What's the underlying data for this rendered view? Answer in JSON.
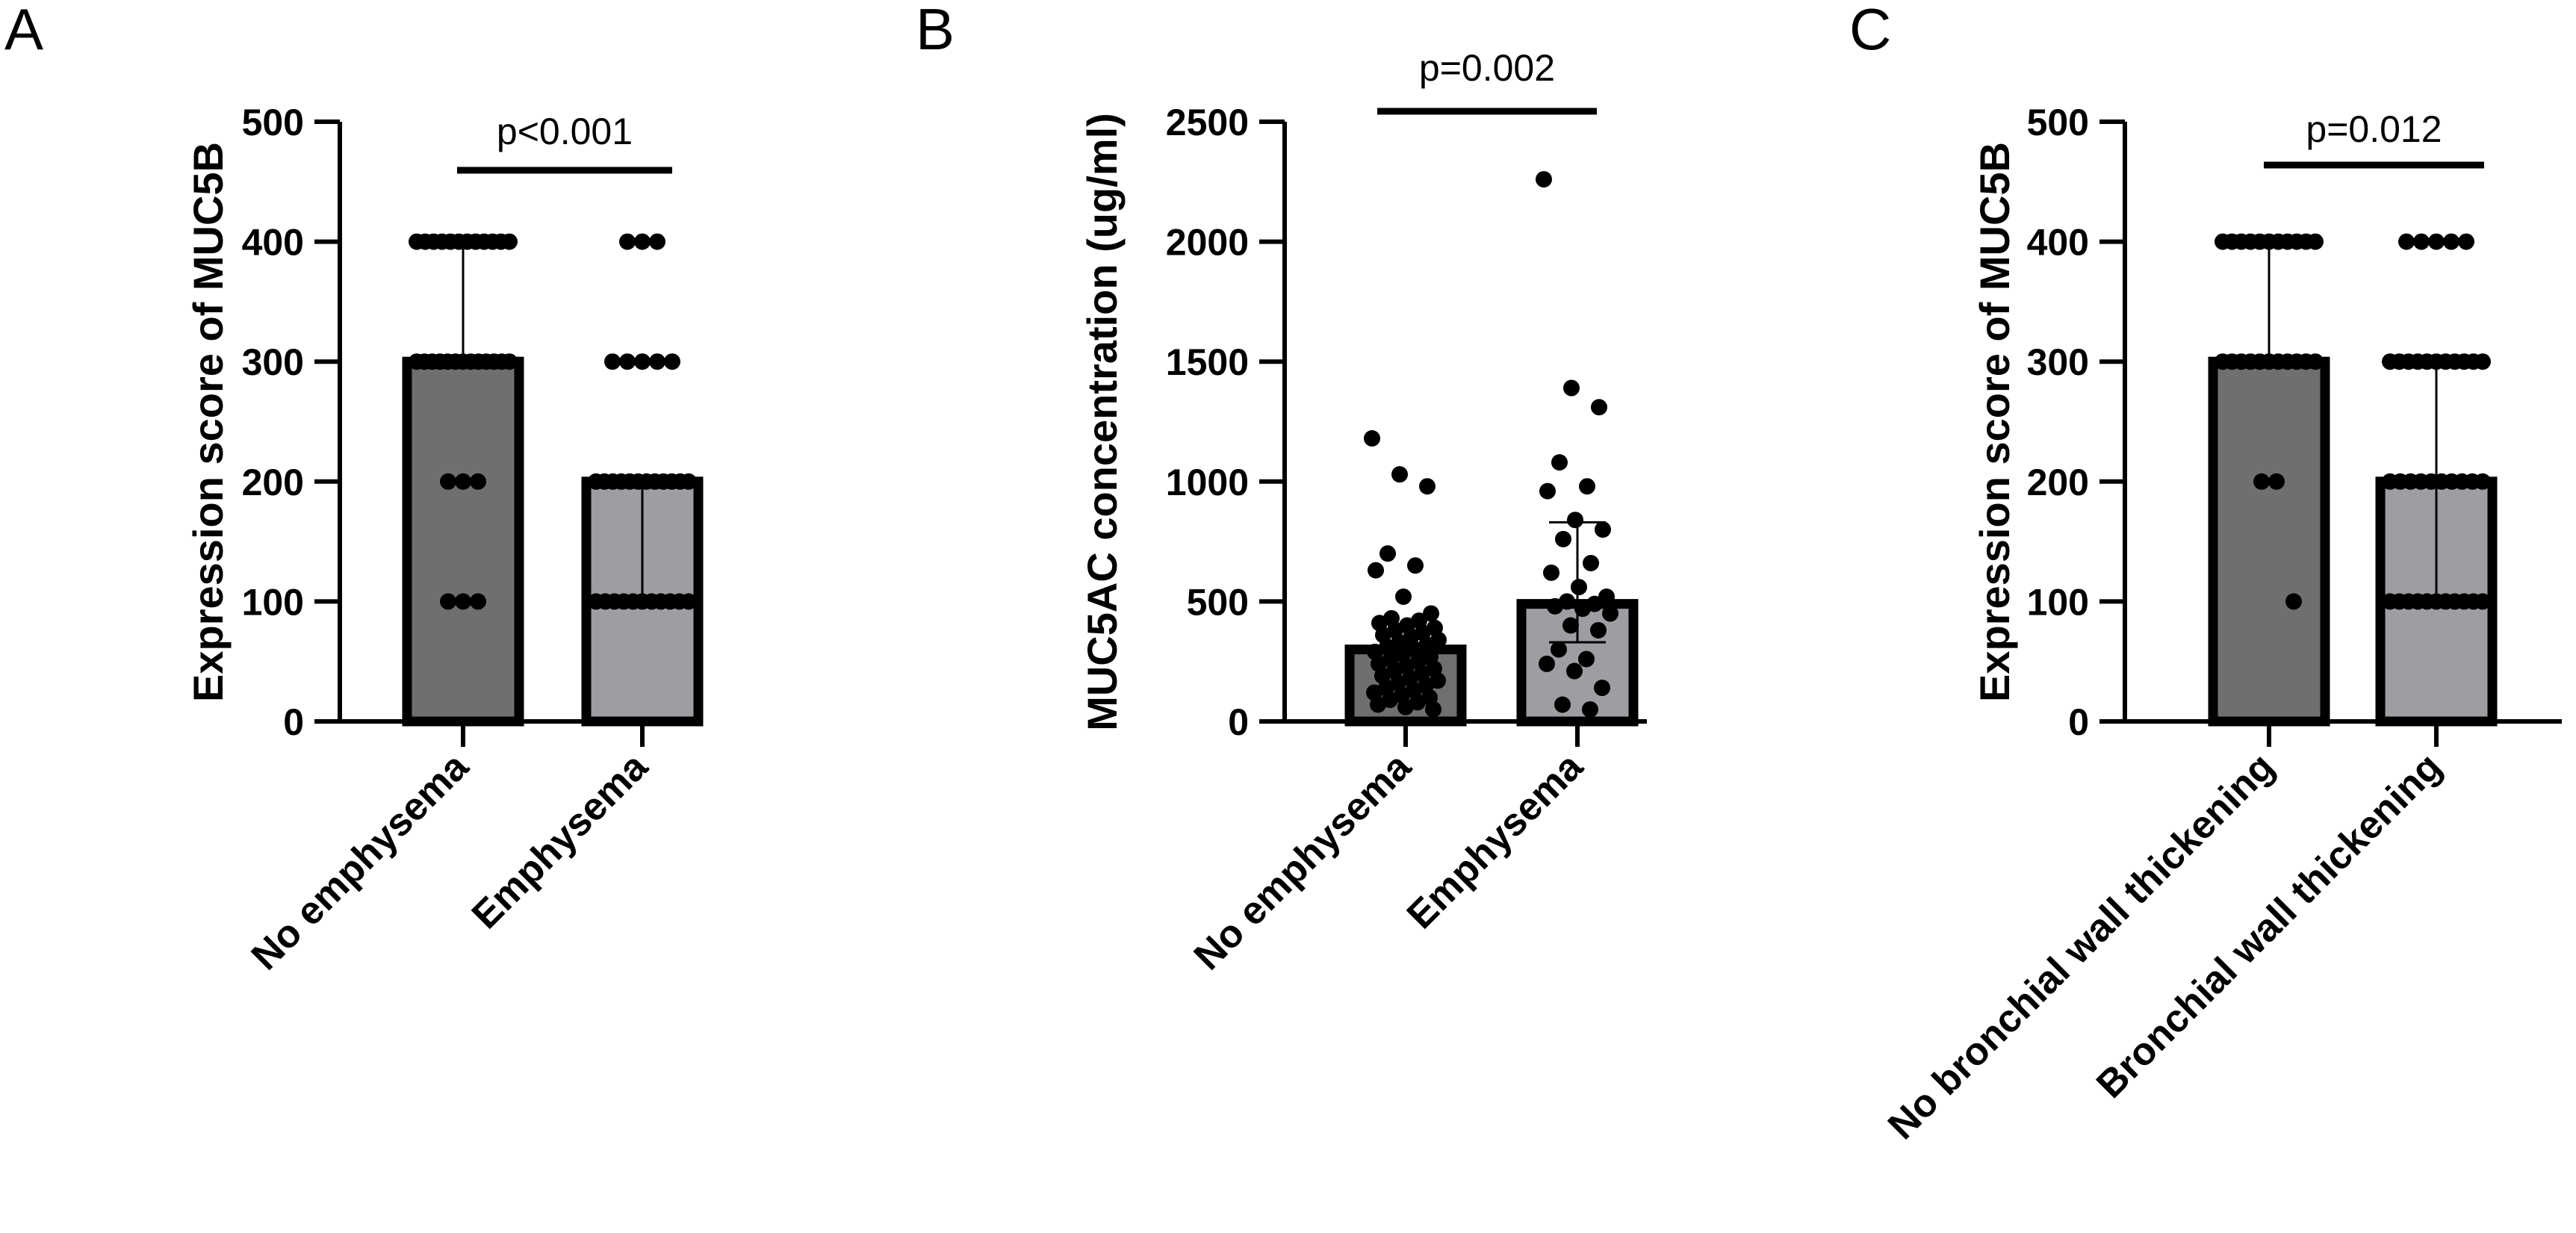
{
  "chart_data": [
    {
      "type": "bar",
      "panel": "A",
      "ylabel": "Expression score of MUC5B",
      "ylim": [
        0,
        500
      ],
      "yticks": [
        0,
        100,
        200,
        300,
        400,
        500
      ],
      "categories": [
        "No emphysema",
        "Emphysema"
      ],
      "values": [
        300,
        200
      ],
      "error_upper": [
        400,
        200
      ],
      "error_lower": [
        300,
        100
      ],
      "bar_colors": [
        "#6f6f6f",
        "#9d9da2"
      ],
      "points": [
        [
          400,
          400,
          400,
          400,
          400,
          400,
          400,
          400,
          400,
          400,
          400,
          400,
          300,
          300,
          300,
          300,
          300,
          300,
          300,
          300,
          300,
          300,
          300,
          300,
          300,
          200,
          200,
          200,
          100,
          100,
          100
        ],
        [
          400,
          400,
          400,
          300,
          300,
          300,
          300,
          300,
          200,
          200,
          200,
          200,
          200,
          200,
          200,
          200,
          200,
          200,
          200,
          200,
          100,
          100,
          100,
          100,
          100,
          100,
          100,
          100,
          100,
          100,
          100
        ]
      ],
      "significance": "p<0.001",
      "grid": false
    },
    {
      "type": "bar",
      "panel": "B",
      "ylabel": "MUC5AC concentration (ug/ml)",
      "ylim": [
        0,
        2500
      ],
      "yticks": [
        0,
        500,
        1000,
        1500,
        2000,
        2500
      ],
      "categories": [
        "No emphysema",
        "Emphysema"
      ],
      "values": [
        300,
        490
      ],
      "error_upper": [
        380,
        830
      ],
      "error_lower": [
        240,
        330
      ],
      "bar_colors": [
        "#6f6f6f",
        "#9d9da2"
      ],
      "points": [
        [
          1180,
          1030,
          980,
          700,
          650,
          630,
          520,
          450,
          430,
          420,
          410,
          400,
          390,
          380,
          370,
          360,
          350,
          340,
          330,
          320,
          310,
          300,
          290,
          280,
          270,
          260,
          250,
          240,
          230,
          220,
          210,
          200,
          190,
          180,
          170,
          160,
          150,
          140,
          130,
          120,
          110,
          100,
          90,
          80,
          70,
          60,
          50
        ],
        [
          2260,
          1390,
          1310,
          1080,
          980,
          960,
          840,
          800,
          760,
          660,
          620,
          560,
          520,
          500,
          490,
          480,
          470,
          450,
          400,
          380,
          300,
          260,
          240,
          210,
          140,
          70,
          50
        ]
      ],
      "significance": "p=0.002",
      "grid": false
    },
    {
      "type": "bar",
      "panel": "C",
      "ylabel": "Expression score of MUC5B",
      "ylim": [
        0,
        500
      ],
      "yticks": [
        0,
        100,
        200,
        300,
        400,
        500
      ],
      "categories": [
        "No bronchial wall thickening",
        "Bronchial wall thickening"
      ],
      "values": [
        300,
        200
      ],
      "error_upper": [
        400,
        300
      ],
      "error_lower": [
        300,
        100
      ],
      "bar_colors": [
        "#6f6f6f",
        "#9d9da2"
      ],
      "points": [
        [
          400,
          400,
          400,
          400,
          400,
          400,
          400,
          400,
          400,
          400,
          400,
          300,
          300,
          300,
          300,
          300,
          300,
          300,
          300,
          300,
          300,
          300,
          200,
          200,
          100
        ],
        [
          400,
          400,
          400,
          400,
          400,
          300,
          300,
          300,
          300,
          300,
          300,
          300,
          300,
          300,
          300,
          300,
          200,
          200,
          200,
          200,
          200,
          200,
          200,
          200,
          200,
          200,
          100,
          100,
          100,
          100,
          100,
          100,
          100,
          100,
          100,
          100,
          100
        ]
      ],
      "significance": "p=0.012",
      "grid": false
    }
  ]
}
